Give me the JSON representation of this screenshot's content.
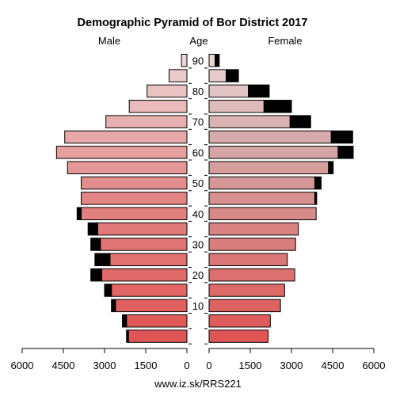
{
  "chart_data": {
    "type": "bar",
    "title": "Demographic Pyramid of Bor District 2017",
    "left_label": "Male",
    "center_label": "Age",
    "right_label": "Female",
    "source": "www.iz.sk/RRS221",
    "xlim": [
      0,
      6000
    ],
    "x_ticks": [
      "6000",
      "4500",
      "3000",
      "1500",
      "0",
      "0",
      "1500",
      "3000",
      "4500",
      "6000"
    ],
    "age_ticks": [
      "10",
      "20",
      "30",
      "40",
      "50",
      "60",
      "70",
      "80",
      "90"
    ],
    "age_groups": [
      "0-4",
      "5-9",
      "10-14",
      "15-19",
      "20-24",
      "25-29",
      "30-34",
      "35-39",
      "40-44",
      "45-49",
      "50-54",
      "55-59",
      "60-64",
      "65-69",
      "70-74",
      "75-79",
      "80-84",
      "85-89",
      "90+"
    ],
    "male_colored": [
      2130,
      2200,
      2600,
      2750,
      3100,
      2800,
      3150,
      3250,
      3850,
      3850,
      3850,
      4350,
      4750,
      4450,
      2950,
      2100,
      1450,
      650,
      200
    ],
    "male_excess": [
      70,
      150,
      150,
      250,
      400,
      550,
      350,
      350,
      150,
      0,
      0,
      0,
      0,
      0,
      0,
      0,
      0,
      0,
      0
    ],
    "female_colored": [
      2150,
      2230,
      2600,
      2750,
      3120,
      2850,
      3150,
      3250,
      3900,
      3850,
      3850,
      4350,
      4700,
      4450,
      2950,
      2000,
      1430,
      620,
      220
    ],
    "female_excess": [
      0,
      0,
      0,
      0,
      0,
      0,
      0,
      0,
      0,
      70,
      230,
      170,
      550,
      780,
      750,
      1000,
      760,
      450,
      150
    ],
    "colors": {
      "young": "#e05555",
      "mid": "#e28585",
      "old": "#ebd4d4",
      "excess": "#000000",
      "female_65": "#d4a8a8"
    }
  }
}
